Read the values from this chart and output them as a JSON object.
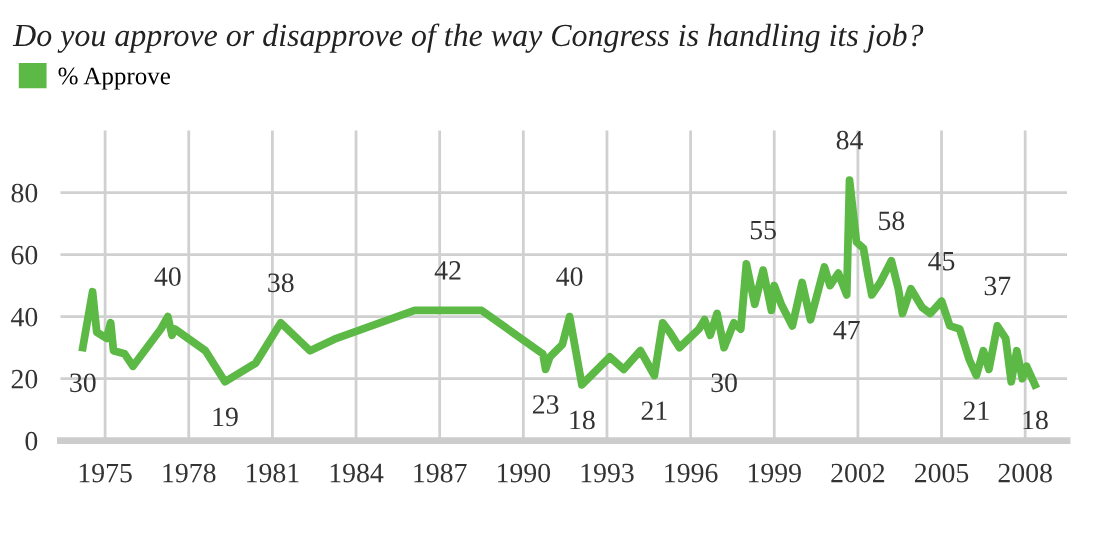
{
  "chart_data": {
    "type": "line",
    "title": "Do you approve or disapprove of the way Congress is handling its job?",
    "x": [
      1974.2,
      1974.55,
      1974.7,
      1975.05,
      1975.2,
      1975.3,
      1975.7,
      1976.0,
      1977.0,
      1977.25,
      1977.4,
      1977.5,
      1978.6,
      1979.3,
      1980.4,
      1981.3,
      1982.35,
      1983.3,
      1986.1,
      1988.5,
      1990.7,
      1990.8,
      1990.95,
      1991.4,
      1991.66,
      1992.1,
      1993.1,
      1993.6,
      1994.2,
      1994.7,
      1995.0,
      1995.25,
      1995.6,
      1996.3,
      1996.5,
      1996.7,
      1996.95,
      1997.2,
      1997.55,
      1997.8,
      1998.0,
      1998.3,
      1998.6,
      1998.9,
      1999.0,
      1999.25,
      1999.65,
      2000.0,
      2000.3,
      2000.8,
      2001.0,
      2001.3,
      2001.6,
      2001.7,
      2001.95,
      2002.2,
      2002.35,
      2002.5,
      2002.8,
      2003.2,
      2003.45,
      2003.6,
      2003.9,
      2004.3,
      2004.6,
      2005.0,
      2005.3,
      2005.65,
      2006.0,
      2006.25,
      2006.5,
      2006.7,
      2007.0,
      2007.3,
      2007.5,
      2007.7,
      2007.9,
      2008.05,
      2008.35
    ],
    "series": [
      {
        "name": "% Approve",
        "color": "#5cb946",
        "values": [
          30,
          48,
          35,
          33,
          38,
          29,
          28,
          24,
          36,
          40,
          34,
          36,
          29,
          19,
          25,
          38,
          29,
          33,
          42,
          42,
          28,
          23,
          27,
          31,
          40,
          18,
          27,
          23,
          29,
          21,
          38,
          35,
          30,
          36,
          39,
          34,
          41,
          30,
          38,
          36,
          57,
          44,
          55,
          42,
          50,
          44,
          37,
          51,
          39,
          56,
          50,
          54,
          47,
          84,
          64,
          62,
          54,
          47,
          51,
          58,
          49,
          41,
          49,
          43,
          41,
          45,
          37,
          36,
          26,
          21,
          29,
          23,
          37,
          33,
          19,
          29,
          20,
          24,
          18
        ]
      }
    ],
    "annotations": [
      {
        "text": "30",
        "x": 1974.2,
        "y": 30
      },
      {
        "text": "40",
        "x": 1977.25,
        "y": 40
      },
      {
        "text": "19",
        "x": 1979.3,
        "y": 19
      },
      {
        "text": "38",
        "x": 1981.3,
        "y": 38
      },
      {
        "text": "42",
        "x": 1987.3,
        "y": 42
      },
      {
        "text": "23",
        "x": 1990.8,
        "y": 23
      },
      {
        "text": "40",
        "x": 1991.66,
        "y": 40
      },
      {
        "text": "18",
        "x": 1992.1,
        "y": 18
      },
      {
        "text": "21",
        "x": 1994.7,
        "y": 21
      },
      {
        "text": "30",
        "x": 1997.2,
        "y": 30
      },
      {
        "text": "55",
        "x": 1998.6,
        "y": 55
      },
      {
        "text": "84",
        "x": 2001.7,
        "y": 84
      },
      {
        "text": "47",
        "x": 2001.6,
        "y": 47
      },
      {
        "text": "58",
        "x": 2003.2,
        "y": 58
      },
      {
        "text": "45",
        "x": 2005.0,
        "y": 45
      },
      {
        "text": "21",
        "x": 2006.25,
        "y": 21
      },
      {
        "text": "37",
        "x": 2007.0,
        "y": 37
      },
      {
        "text": "18",
        "x": 2008.35,
        "y": 18
      }
    ],
    "xlim": [
      1973.4,
      2009.5
    ],
    "ylim": [
      0,
      100
    ],
    "xticks": [
      1975,
      1978,
      1981,
      1984,
      1987,
      1990,
      1993,
      1996,
      1999,
      2002,
      2005,
      2008
    ],
    "yticks": [
      0,
      20,
      40,
      60,
      80
    ],
    "grid": true,
    "legend": "top left",
    "marker": "none",
    "line_style": "solid"
  }
}
